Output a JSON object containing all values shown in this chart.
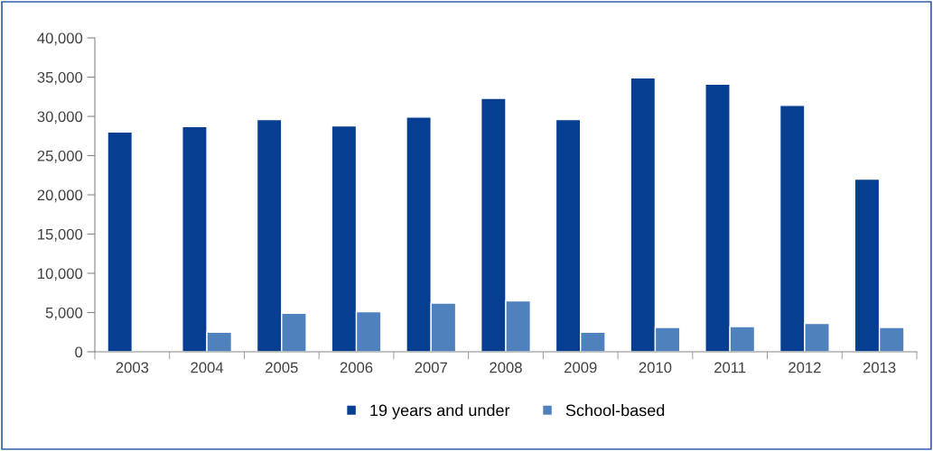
{
  "chart_data": {
    "type": "bar",
    "categories": [
      "2003",
      "2004",
      "2005",
      "2006",
      "2007",
      "2008",
      "2009",
      "2010",
      "2011",
      "2012",
      "2013"
    ],
    "series": [
      {
        "name": "19 years and under",
        "color": "#063f92",
        "values": [
          28000,
          28700,
          29600,
          28800,
          29900,
          32300,
          29600,
          34900,
          34100,
          31400,
          22000
        ]
      },
      {
        "name": "School-based",
        "color": "#4f81bd",
        "values": [
          null,
          2500,
          4900,
          5100,
          6200,
          6500,
          2500,
          3100,
          3200,
          3600,
          3100
        ]
      }
    ],
    "ylim": [
      0,
      40000
    ],
    "yticks": [
      {
        "value": 0,
        "label": "0"
      },
      {
        "value": 5000,
        "label": "5,000"
      },
      {
        "value": 10000,
        "label": "10,000"
      },
      {
        "value": 15000,
        "label": "15,000"
      },
      {
        "value": 20000,
        "label": "20,000"
      },
      {
        "value": 25000,
        "label": "25,000"
      },
      {
        "value": 30000,
        "label": "30,000"
      },
      {
        "value": 35000,
        "label": "35,000"
      },
      {
        "value": 40000,
        "label": "40,000"
      }
    ],
    "grid": false,
    "legend": "bottom"
  }
}
